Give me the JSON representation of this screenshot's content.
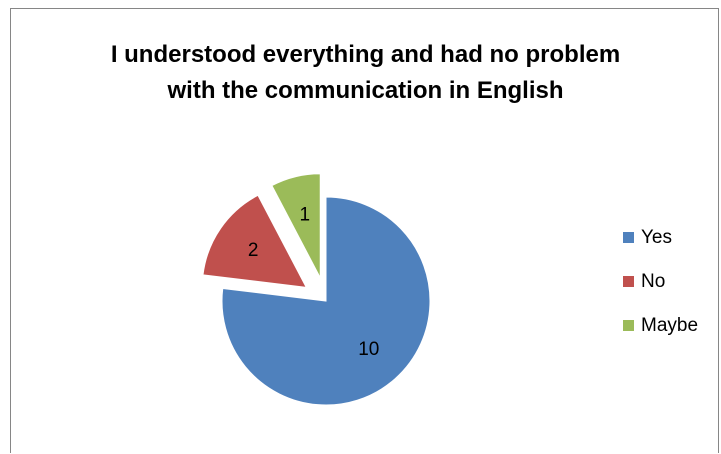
{
  "chart_data": {
    "type": "pie",
    "title_lines": [
      "I understood everything and had no problem",
      "with the communication  in English"
    ],
    "categories": [
      "Yes",
      "No",
      "Maybe"
    ],
    "values": [
      10,
      2,
      1
    ],
    "colors": [
      "#4F81BD",
      "#C0504D",
      "#9BBB59"
    ],
    "exploded": [
      false,
      true,
      true
    ],
    "data_labels": [
      "10",
      "2",
      "1"
    ],
    "legend_position": "right",
    "start_angle_deg": 0,
    "direction": "clockwise"
  }
}
